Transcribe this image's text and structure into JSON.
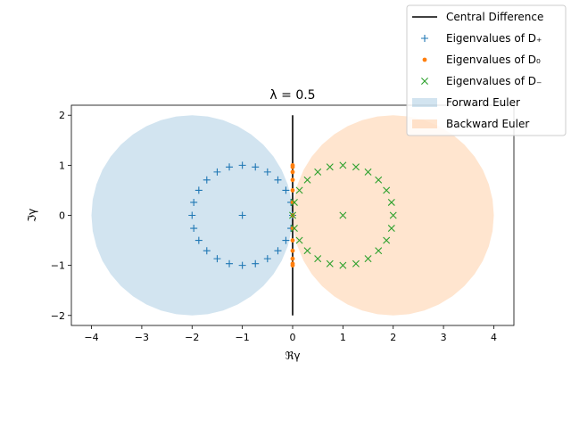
{
  "chart_data": {
    "type": "scatter",
    "title": "λ = 0.5",
    "xlabel": "ℜγ",
    "ylabel": "ℑγ",
    "xlim": [
      -4.4,
      4.4
    ],
    "ylim": [
      -2.2,
      2.2
    ],
    "xticks": [
      -4,
      -3,
      -2,
      -1,
      0,
      1,
      2,
      3,
      4
    ],
    "yticks": [
      -2,
      -1,
      0,
      1,
      2
    ],
    "xtick_labels": [
      "−4",
      "−3",
      "−2",
      "−1",
      "0",
      "1",
      "2",
      "3",
      "4"
    ],
    "ytick_labels": [
      "−2",
      "−1",
      "0",
      "1",
      "2"
    ],
    "grid": false,
    "legend_position": "top-right",
    "regions": [
      {
        "name": "Forward Euler",
        "center": [
          -2,
          0
        ],
        "radius": 2,
        "color": "#1f77b4",
        "opacity": 0.2
      },
      {
        "name": "Backward Euler",
        "center": [
          2,
          0
        ],
        "radius": 2,
        "color": "#ff7f0e",
        "opacity": 0.2
      }
    ],
    "line": {
      "name": "Central Difference",
      "x": [
        0,
        0
      ],
      "y": [
        -2,
        2
      ],
      "color": "#000000"
    },
    "series": [
      {
        "name": "Eigenvalues of D₊",
        "marker": "plus",
        "color": "#1f77b4",
        "x": [
          0.0,
          -0.034,
          -0.134,
          -0.293,
          -0.5,
          -0.741,
          -1.0,
          -1.259,
          -1.5,
          -1.707,
          -1.866,
          -1.966,
          -2.0,
          -1.966,
          -1.866,
          -1.707,
          -1.5,
          -1.259,
          -1.0,
          -0.741,
          -0.5,
          -0.293,
          -0.134,
          -0.034,
          -1.0
        ],
        "y": [
          0.0,
          0.259,
          0.5,
          0.707,
          0.866,
          0.966,
          1.0,
          0.966,
          0.866,
          0.707,
          0.5,
          0.259,
          0.0,
          -0.259,
          -0.5,
          -0.707,
          -0.866,
          -0.966,
          -1.0,
          -0.966,
          -0.866,
          -0.707,
          -0.5,
          -0.259,
          0.0
        ]
      },
      {
        "name": "Eigenvalues of D₀",
        "marker": "dot",
        "color": "#ff7f0e",
        "x": [
          0,
          0,
          0,
          0,
          0,
          0,
          0,
          0,
          0,
          0,
          0,
          0,
          0
        ],
        "y": [
          0.0,
          0.259,
          0.5,
          0.707,
          0.866,
          0.966,
          1.0,
          -0.259,
          -0.5,
          -0.707,
          -0.866,
          -0.966,
          -1.0
        ]
      },
      {
        "name": "Eigenvalues of D₋",
        "marker": "x",
        "color": "#2ca02c",
        "x": [
          0.0,
          0.034,
          0.134,
          0.293,
          0.5,
          0.741,
          1.0,
          1.259,
          1.5,
          1.707,
          1.866,
          1.966,
          2.0,
          1.966,
          1.866,
          1.707,
          1.5,
          1.259,
          1.0,
          0.741,
          0.5,
          0.293,
          0.134,
          0.034,
          1.0
        ],
        "y": [
          0.0,
          0.259,
          0.5,
          0.707,
          0.866,
          0.966,
          1.0,
          0.966,
          0.866,
          0.707,
          0.5,
          0.259,
          0.0,
          -0.259,
          -0.5,
          -0.707,
          -0.866,
          -0.966,
          -1.0,
          -0.966,
          -0.866,
          -0.707,
          -0.5,
          -0.259,
          0.0
        ]
      }
    ],
    "legend": {
      "entries": [
        {
          "label": "Central Difference",
          "kind": "line",
          "color": "#000000"
        },
        {
          "label": "Eigenvalues of D₊",
          "kind": "plus",
          "color": "#1f77b4"
        },
        {
          "label": "Eigenvalues of D₀",
          "kind": "dot",
          "color": "#ff7f0e"
        },
        {
          "label": "Eigenvalues of D₋",
          "kind": "x",
          "color": "#2ca02c"
        },
        {
          "label": "Forward Euler",
          "kind": "patch",
          "color": "#1f77b4"
        },
        {
          "label": "Backward Euler",
          "kind": "patch",
          "color": "#ff7f0e"
        }
      ]
    }
  }
}
